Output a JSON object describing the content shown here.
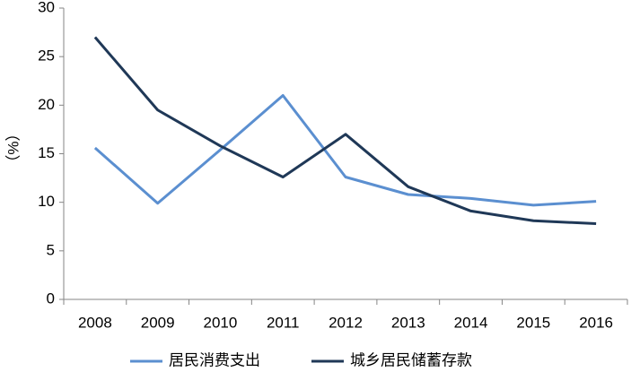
{
  "chart_data": {
    "type": "line",
    "y_label": "（%）",
    "categories": [
      "2008",
      "2009",
      "2010",
      "2011",
      "2012",
      "2013",
      "2014",
      "2015",
      "2016"
    ],
    "series": [
      {
        "name": "居民消费支出",
        "color": "#5b8fd0",
        "values": [
          15.6,
          9.9,
          15.4,
          21.0,
          12.6,
          10.8,
          10.4,
          9.7,
          10.1
        ]
      },
      {
        "name": "城乡居民储蓄存款",
        "color": "#1f3857",
        "values": [
          27.0,
          19.5,
          15.8,
          12.6,
          17.0,
          11.6,
          9.1,
          8.1,
          7.8
        ]
      }
    ],
    "ylim": [
      0,
      30
    ],
    "yticks": [
      0,
      5,
      10,
      15,
      20,
      25,
      30
    ],
    "grid": false
  }
}
